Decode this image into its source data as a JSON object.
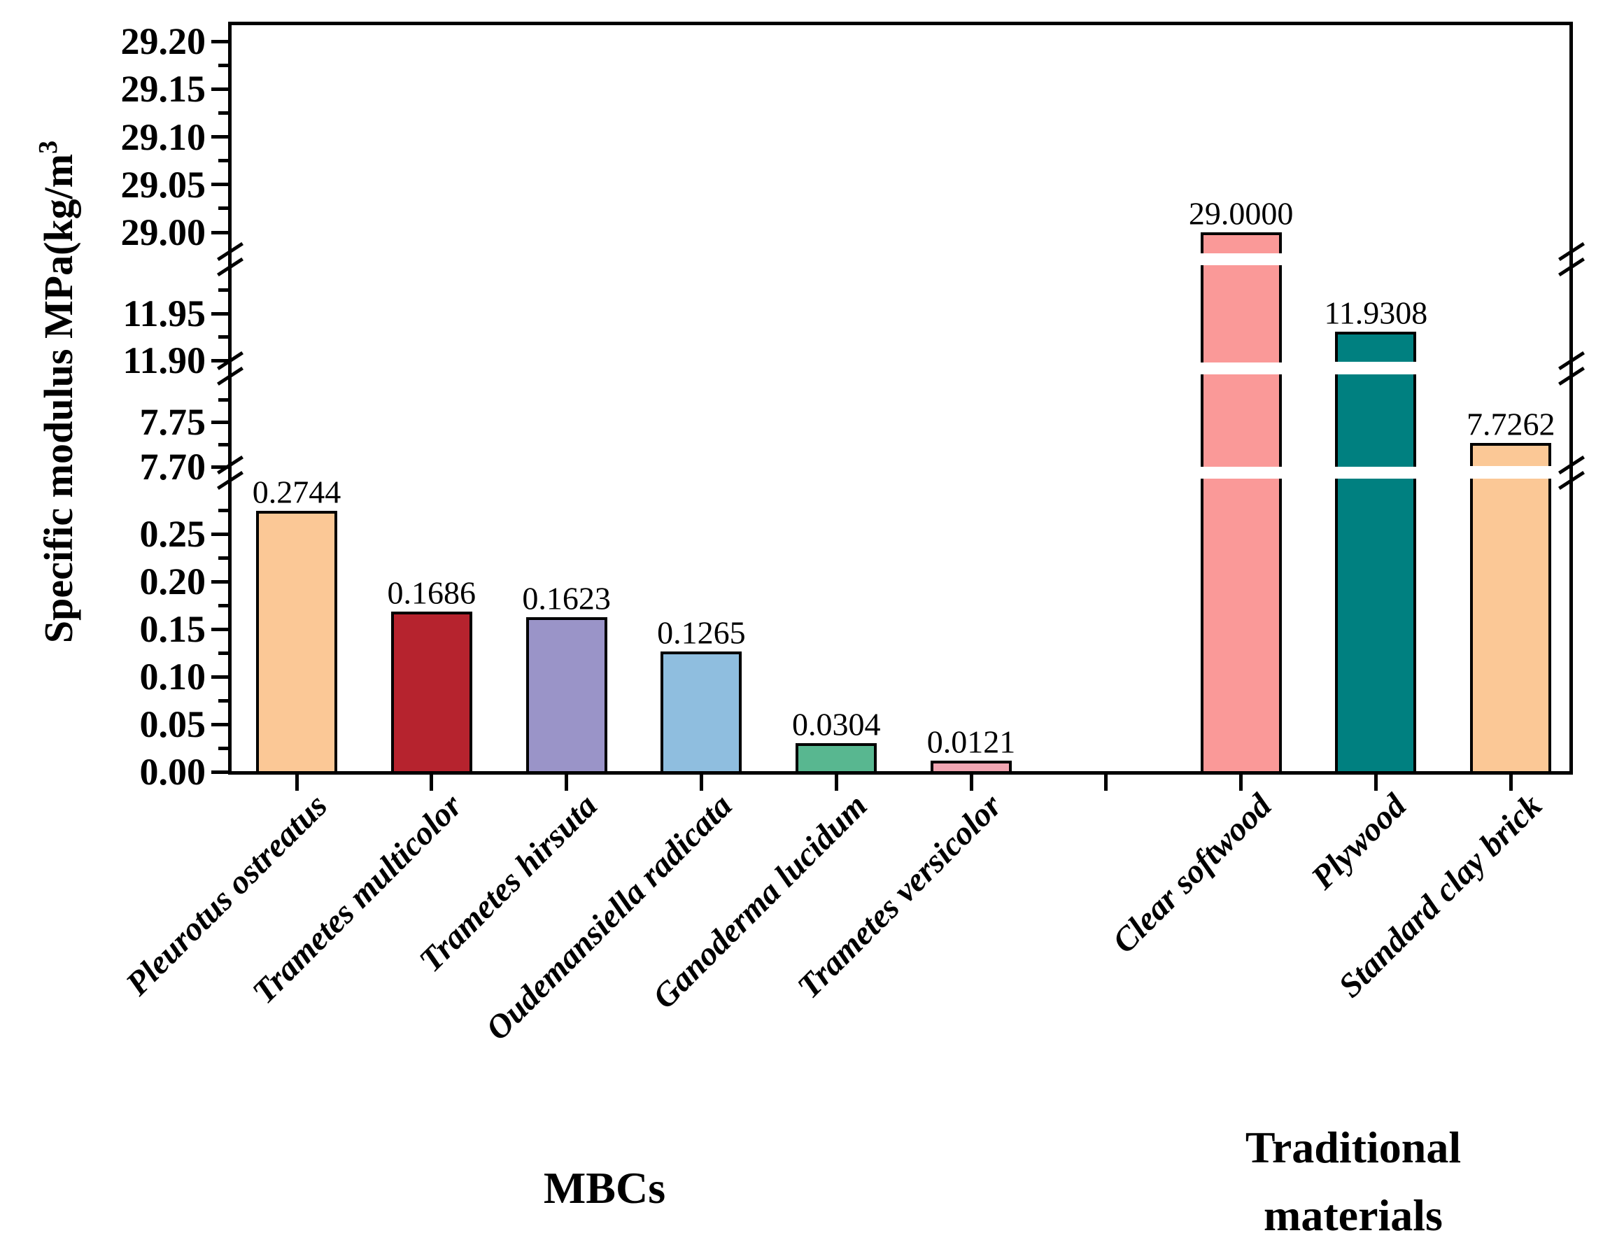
{
  "y_axis": {
    "title_main": "Specific modulus MPa(kg/m",
    "title_sup": "3"
  },
  "group_labels": {
    "mbcs": "MBCs",
    "traditional_line1": "Traditional",
    "traditional_line2": "materials"
  },
  "chart_data": {
    "type": "bar",
    "title": "",
    "xlabel": "",
    "ylabel": "Specific modulus MPa(kg/m³",
    "axis_style": "broken y-axis with 3 breaks, black frame, ticks outside, grid off, no legend",
    "categories": [
      "Pleurotus ostreatus",
      "Trametes multicolor",
      "Trametes hirsuta",
      "Oudemansiella radicata",
      "Ganoderma lucidum",
      "Trametes versicolor",
      "Clear softwood",
      "Plywood",
      "Standard clay brick"
    ],
    "values": [
      0.2744,
      0.1686,
      0.1623,
      0.1265,
      0.0304,
      0.0121,
      29.0,
      11.9308,
      7.7262
    ],
    "value_labels": [
      "0.2744",
      "0.1686",
      "0.1623",
      "0.1265",
      "0.0304",
      "0.0121",
      "29.0000",
      "11.9308",
      "7.7262"
    ],
    "bar_colors": [
      "#FBC896",
      "#B6232E",
      "#9A94C8",
      "#8FBEDF",
      "#58B790",
      "#F0A5B2",
      "#FA9998",
      "#008080",
      "#FBC896"
    ],
    "slots": [
      0,
      1,
      2,
      3,
      4,
      5,
      7,
      8,
      9
    ],
    "groups": [
      {
        "label": "MBCs",
        "categories": [
          "Pleurotus ostreatus",
          "Trametes multicolor",
          "Trametes hirsuta",
          "Oudemansiella radicata",
          "Ganoderma lucidum",
          "Trametes versicolor"
        ]
      },
      {
        "label": "Traditional materials",
        "categories": [
          "Clear softwood",
          "Plywood",
          "Standard clay brick"
        ]
      }
    ],
    "y_axis_sections": [
      {
        "value_range": [
          0.0,
          0.2965
        ],
        "major_ticks": [
          "0.00",
          "0.05",
          "0.10",
          "0.15",
          "0.20",
          "0.25"
        ]
      },
      {
        "value_range": [
          7.682,
          7.801
        ],
        "major_ticks": [
          "7.70",
          "7.75"
        ]
      },
      {
        "value_range": [
          11.893,
          11.999
        ],
        "major_ticks": [
          "11.90",
          "11.95"
        ]
      },
      {
        "value_range": [
          28.975,
          29.221
        ],
        "major_ticks": [
          "29.00",
          "29.05",
          "29.10",
          "29.15",
          "29.20"
        ]
      }
    ],
    "axis_break_count": 3,
    "colors": {
      "axis": "#000000",
      "background": "#ffffff",
      "text": "#000000"
    }
  }
}
